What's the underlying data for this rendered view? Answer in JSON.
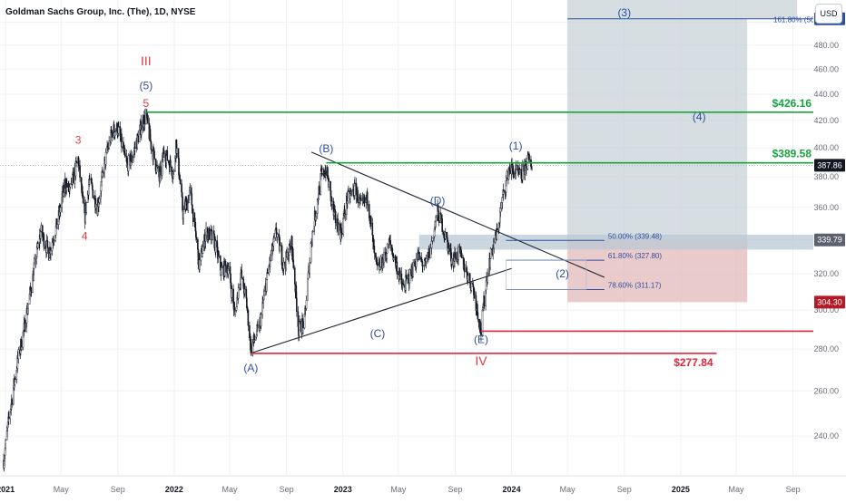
{
  "header": {
    "title": "Goldman Sachs Group, Inc. (The), 1D, NYSE",
    "currency_button": "USD"
  },
  "colors": {
    "green": "#17a33d",
    "red": "#e0283b",
    "blue": "#2d4fa0",
    "wave_red": "#e03a40",
    "candle": "#131722",
    "grid": "#eef0f4",
    "projection_box": "#c9d3d8",
    "support_box": "#e3b9b9",
    "fib_zone": "#b9c8d4",
    "axis_text": "#6a6d78"
  },
  "chart_data": {
    "type": "candlestick",
    "symbol": "GS",
    "y_axis": {
      "scale": "log",
      "range": [
        224,
        520
      ],
      "tick_labels": [
        "240.00",
        "260.00",
        "280.00",
        "300.00",
        "320.00",
        "340.00",
        "360.00",
        "380.00",
        "400.00",
        "420.00",
        "440.00",
        "460.00",
        "480.00",
        "500.00"
      ]
    },
    "x_axis": {
      "range": [
        "2020-12-20",
        "2025-10-15"
      ],
      "tick_labels": [
        {
          "date": "2021-01-01",
          "label": "2021",
          "bold": true
        },
        {
          "date": "2021-05-01",
          "label": "May",
          "bold": false
        },
        {
          "date": "2021-09-01",
          "label": "Sep",
          "bold": false
        },
        {
          "date": "2022-01-01",
          "label": "2022",
          "bold": true
        },
        {
          "date": "2022-05-01",
          "label": "May",
          "bold": false
        },
        {
          "date": "2022-09-01",
          "label": "Sep",
          "bold": false
        },
        {
          "date": "2023-01-01",
          "label": "2023",
          "bold": true
        },
        {
          "date": "2023-05-01",
          "label": "May",
          "bold": false
        },
        {
          "date": "2023-09-01",
          "label": "Sep",
          "bold": false
        },
        {
          "date": "2024-01-01",
          "label": "2024",
          "bold": true
        },
        {
          "date": "2024-05-01",
          "label": "May",
          "bold": false
        },
        {
          "date": "2024-09-01",
          "label": "Sep",
          "bold": false
        },
        {
          "date": "2025-01-01",
          "label": "2025",
          "bold": true
        },
        {
          "date": "2025-05-01",
          "label": "May",
          "bold": false
        },
        {
          "date": "2025-09-01",
          "label": "Sep",
          "bold": false
        }
      ]
    },
    "price_path": [
      [
        "2020-12-28",
        230
      ],
      [
        "2021-01-10",
        250
      ],
      [
        "2021-01-27",
        274
      ],
      [
        "2021-02-10",
        290
      ],
      [
        "2021-03-01",
        318
      ],
      [
        "2021-03-18",
        345
      ],
      [
        "2021-04-05",
        332
      ],
      [
        "2021-04-25",
        352
      ],
      [
        "2021-05-10",
        376
      ],
      [
        "2021-05-20",
        370
      ],
      [
        "2021-06-07",
        392
      ],
      [
        "2021-06-21",
        352
      ],
      [
        "2021-07-01",
        378
      ],
      [
        "2021-07-19",
        360
      ],
      [
        "2021-08-05",
        392
      ],
      [
        "2021-08-20",
        412
      ],
      [
        "2021-09-01",
        414
      ],
      [
        "2021-09-20",
        388
      ],
      [
        "2021-10-01",
        392
      ],
      [
        "2021-10-20",
        414
      ],
      [
        "2021-11-01",
        424
      ],
      [
        "2021-11-12",
        402
      ],
      [
        "2021-11-30",
        378
      ],
      [
        "2021-12-10",
        398
      ],
      [
        "2021-12-31",
        382
      ],
      [
        "2022-01-05",
        404
      ],
      [
        "2022-01-20",
        356
      ],
      [
        "2022-02-05",
        370
      ],
      [
        "2022-02-24",
        325
      ],
      [
        "2022-03-12",
        345
      ],
      [
        "2022-03-28",
        340
      ],
      [
        "2022-04-12",
        322
      ],
      [
        "2022-04-28",
        324
      ],
      [
        "2022-05-12",
        298
      ],
      [
        "2022-05-25",
        320
      ],
      [
        "2022-06-06",
        305
      ],
      [
        "2022-06-16",
        280
      ],
      [
        "2022-07-05",
        292
      ],
      [
        "2022-07-25",
        324
      ],
      [
        "2022-08-10",
        345
      ],
      [
        "2022-08-26",
        324
      ],
      [
        "2022-09-12",
        338
      ],
      [
        "2022-09-27",
        290
      ],
      [
        "2022-10-10",
        294
      ],
      [
        "2022-10-25",
        340
      ],
      [
        "2022-11-15",
        380
      ],
      [
        "2022-11-26",
        385
      ],
      [
        "2022-12-12",
        355
      ],
      [
        "2022-12-28",
        344
      ],
      [
        "2023-01-10",
        365
      ],
      [
        "2023-01-27",
        372
      ],
      [
        "2023-02-10",
        360
      ],
      [
        "2023-02-24",
        366
      ],
      [
        "2023-03-10",
        330
      ],
      [
        "2023-03-17",
        322
      ],
      [
        "2023-03-30",
        328
      ],
      [
        "2023-04-12",
        338
      ],
      [
        "2023-04-27",
        325
      ],
      [
        "2023-05-10",
        312
      ],
      [
        "2023-05-25",
        318
      ],
      [
        "2023-06-12",
        330
      ],
      [
        "2023-06-28",
        324
      ],
      [
        "2023-07-10",
        335
      ],
      [
        "2023-07-25",
        357
      ],
      [
        "2023-08-05",
        348
      ],
      [
        "2023-08-25",
        328
      ],
      [
        "2023-09-10",
        332
      ],
      [
        "2023-09-27",
        320
      ],
      [
        "2023-10-10",
        312
      ],
      [
        "2023-10-27",
        289
      ],
      [
        "2023-11-08",
        318
      ],
      [
        "2023-11-20",
        334
      ],
      [
        "2023-12-01",
        344
      ],
      [
        "2023-12-12",
        365
      ],
      [
        "2023-12-27",
        386
      ],
      [
        "2024-01-10",
        383
      ],
      [
        "2024-01-22",
        380
      ],
      [
        "2024-02-05",
        392
      ],
      [
        "2024-02-14",
        387.86
      ]
    ],
    "horizontal_levels": [
      {
        "price": 426.16,
        "label": "$426.16",
        "color": "green",
        "from": "2021-11-01",
        "to": "2025-11-01"
      },
      {
        "price": 389.58,
        "label": "$389.58",
        "color": "green",
        "from": "2022-11-26",
        "to": "2025-11-01"
      },
      {
        "price": 277.84,
        "label": "$277.84",
        "color": "red",
        "from": "2022-06-16",
        "to": "2025-03-20"
      },
      {
        "price": 289,
        "label": "",
        "color": "red",
        "from": "2023-10-27",
        "to": "2025-11-01"
      }
    ],
    "triangle_lines": [
      {
        "from": [
          "2022-10-25",
          397
        ],
        "to": [
          "2024-07-20",
          318
        ]
      },
      {
        "from": [
          "2022-06-16",
          278
        ],
        "to": [
          "2024-01-01",
          323
        ]
      }
    ],
    "fib_levels": [
      {
        "price": 339.48,
        "label": "50.00% (339.48)"
      },
      {
        "price": 327.8,
        "label": "61.80% (327.80)"
      },
      {
        "price": 311.17,
        "label": "78.60% (311.17)"
      },
      {
        "price": 502.91,
        "label": "161.80% (502.91)"
      }
    ],
    "projection_boxes": [
      {
        "name": "target-box",
        "from": "2024-05-01",
        "to": "2025-05-25",
        "top": 502.91,
        "bottom": 339.79,
        "color": "projection_box"
      },
      {
        "name": "upper-shade-box",
        "from": "2024-05-01",
        "to": "2025-09-10",
        "top": 520,
        "bottom": 502.91,
        "color": "projection_box"
      },
      {
        "name": "stop-box",
        "from": "2024-05-01",
        "to": "2025-05-25",
        "top": 339.79,
        "bottom": 304.3,
        "color": "support_box"
      },
      {
        "name": "fib-zone-box",
        "from": "2023-06-15",
        "to": "2025-11-01",
        "top": 343,
        "bottom": 334,
        "color": "fib_zone"
      }
    ],
    "wave_labels": [
      {
        "text": "III",
        "date": "2021-11-01",
        "price": 463,
        "color": "wave_red",
        "size": 14
      },
      {
        "text": "(5)",
        "date": "2021-11-01",
        "price": 444,
        "color": "blue",
        "size": 12
      },
      {
        "text": "5",
        "date": "2021-11-01",
        "price": 430,
        "color": "wave_red",
        "size": 12
      },
      {
        "text": "3",
        "date": "2021-06-07",
        "price": 403,
        "color": "wave_red",
        "size": 12
      },
      {
        "text": "4",
        "date": "2021-06-21",
        "price": 340,
        "color": "wave_red",
        "size": 12
      },
      {
        "text": "(B)",
        "date": "2022-11-26",
        "price": 397,
        "color": "blue",
        "size": 12
      },
      {
        "text": "(D)",
        "date": "2023-07-25",
        "price": 362,
        "color": "blue",
        "size": 12
      },
      {
        "text": "(1)",
        "date": "2024-01-10",
        "price": 399,
        "color": "blue",
        "size": 12
      },
      {
        "text": "(3)",
        "date": "2024-09-01",
        "price": 505,
        "color": "blue",
        "size": 12
      },
      {
        "text": "(4)",
        "date": "2025-02-10",
        "price": 420,
        "color": "blue",
        "size": 12
      },
      {
        "text": "(2)",
        "date": "2024-04-20",
        "price": 318,
        "color": "blue",
        "size": 12
      },
      {
        "text": "(C)",
        "date": "2023-03-17",
        "price": 286,
        "color": "blue",
        "size": 12
      },
      {
        "text": "(A)",
        "date": "2022-06-16",
        "price": 269,
        "color": "blue",
        "size": 12
      },
      {
        "text": "(E)",
        "date": "2023-10-27",
        "price": 283,
        "color": "blue",
        "size": 12
      },
      {
        "text": "IV",
        "date": "2023-10-27",
        "price": 272,
        "color": "wave_red",
        "size": 14
      }
    ],
    "price_tags": [
      {
        "price": 502.91,
        "label": "502.91",
        "bg": "#2d4fa0"
      },
      {
        "price": 387.86,
        "label": "387.86",
        "bg": "#131722"
      },
      {
        "price": 339.79,
        "label": "339.79",
        "bg": "#5c6170"
      },
      {
        "price": 304.3,
        "label": "304.30",
        "bg": "#b31b28"
      }
    ]
  }
}
